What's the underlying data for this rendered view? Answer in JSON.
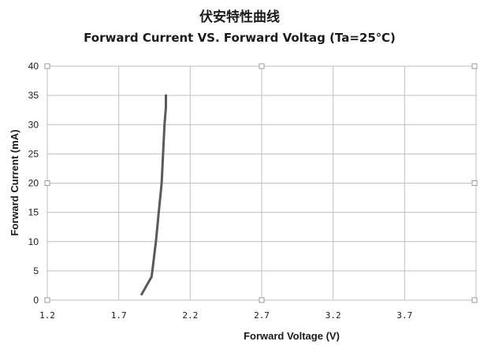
{
  "chart_data": {
    "type": "line",
    "title": "伏安特性曲线",
    "subtitle": "Forward Current VS. Forward Voltag (Ta=25℃)",
    "xlabel": "Forward  Voltage (V)",
    "ylabel": "Forward  Current (mA)",
    "xlim": [
      1.2,
      4.2
    ],
    "ylim": [
      0,
      40
    ],
    "x_ticks": [
      1.2,
      1.7,
      2.2,
      2.7,
      3.2,
      3.7
    ],
    "x_tick_labels": [
      "1.2",
      "1.7",
      "2.2",
      "2.7",
      "3.2",
      "3.7"
    ],
    "y_ticks": [
      0,
      5,
      10,
      15,
      20,
      25,
      30,
      35,
      40
    ],
    "y_tick_labels": [
      "0",
      "5",
      "10",
      "15",
      "20",
      "25",
      "30",
      "35",
      "40"
    ],
    "grid": true,
    "series": [
      {
        "color": "#595959",
        "x": [
          1.86,
          1.93,
          1.96,
          1.98,
          2.0,
          2.01,
          2.02,
          2.03,
          2.03
        ],
        "y": [
          1,
          4,
          10,
          15,
          20,
          25,
          30,
          33,
          35
        ]
      }
    ]
  }
}
